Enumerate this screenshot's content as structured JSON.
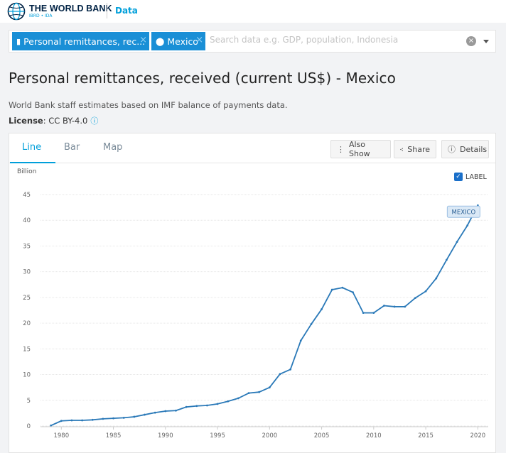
{
  "header": {
    "logo_main": "THE WORLD BANK",
    "logo_sub": "IBRD • IDA",
    "section": "Data"
  },
  "search": {
    "chip_indicator": "Personal remittances, rec...",
    "chip_country": "Mexico",
    "placeholder": "Search data e.g. GDP, population, Indonesia"
  },
  "page": {
    "title": "Personal remittances, received (current US$) - Mexico",
    "description": "World Bank staff estimates based on IMF balance of payments data.",
    "license_label": "License",
    "license_value": ": CC BY-4.0"
  },
  "tabs": [
    "Line",
    "Bar",
    "Map"
  ],
  "toolbar": {
    "also_show": "Also Show",
    "share": "Share",
    "details": "Details"
  },
  "chart_label_toggle": "LABEL",
  "colors": {
    "accent": "#009fda",
    "line": "#2a79b8",
    "chip": "#1a8fd6"
  },
  "chart_data": {
    "type": "line",
    "unit": "Billion",
    "ylim": [
      0,
      45
    ],
    "yticks": [
      0,
      5,
      10,
      15,
      20,
      25,
      30,
      35,
      40,
      45
    ],
    "xticks": [
      1980,
      1985,
      1990,
      1995,
      2000,
      2005,
      2010,
      2015,
      2020
    ],
    "xlim": [
      1978,
      2021
    ],
    "grid": true,
    "series": [
      {
        "name": "MEXICO",
        "x": [
          1979,
          1980,
          1981,
          1982,
          1983,
          1984,
          1985,
          1986,
          1987,
          1988,
          1989,
          1990,
          1991,
          1992,
          1993,
          1994,
          1995,
          1996,
          1997,
          1998,
          1999,
          2000,
          2001,
          2002,
          2003,
          2004,
          2005,
          2006,
          2007,
          2008,
          2009,
          2010,
          2011,
          2012,
          2013,
          2014,
          2015,
          2016,
          2017,
          2018,
          2019,
          2020
        ],
        "values": [
          0.1,
          1.0,
          1.1,
          1.1,
          1.2,
          1.4,
          1.5,
          1.6,
          1.8,
          2.2,
          2.6,
          2.9,
          3.0,
          3.7,
          3.9,
          4.0,
          4.3,
          4.8,
          5.4,
          6.4,
          6.6,
          7.5,
          10.1,
          11.0,
          16.6,
          19.8,
          22.7,
          26.5,
          26.9,
          26.0,
          22.0,
          22.0,
          23.4,
          23.2,
          23.2,
          24.9,
          26.2,
          28.7,
          32.3,
          35.8,
          39.0,
          42.9
        ]
      }
    ]
  }
}
